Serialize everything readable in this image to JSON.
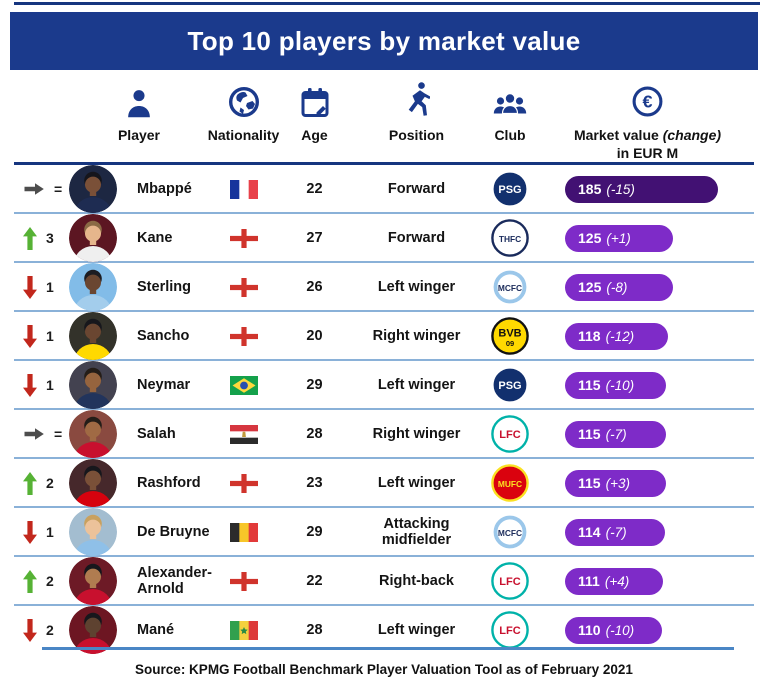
{
  "title": "Top 10 players by market value",
  "source": "Source: KPMG Football Benchmark Player Valuation Tool as of February 2021",
  "columns": [
    {
      "label": "Player",
      "icon": "player-icon"
    },
    {
      "label": "Nationality",
      "icon": "globe-icon"
    },
    {
      "label": "Age",
      "icon": "calendar-icon"
    },
    {
      "label": "Position",
      "icon": "running-player-icon"
    },
    {
      "label": "Club",
      "icon": "club-members-icon"
    },
    {
      "label": "Market value",
      "label_italic": "(change)",
      "label2": "in EUR M",
      "icon": "euro-coin-icon"
    }
  ],
  "colors": {
    "banner_navy": "#1b3a8c",
    "icon_navy": "#1b3a8c",
    "pill_purple": "#7e2bc8",
    "pill_dark_purple": "#421173",
    "separator_blue": "#8ab1d8",
    "bottom_rule_blue": "#4a86c5",
    "up_green": "#56b235",
    "down_red": "#c2271c",
    "same_gray": "#4d4d4d"
  },
  "chart_data": {
    "type": "table",
    "title": "Top 10 players by market value",
    "value_unit": "EUR M",
    "value_axis_note": "pill width proportional to market value",
    "rows": [
      {
        "rank": 1,
        "move": {
          "dir": "same",
          "label": "="
        },
        "name": "Mbappé",
        "nationality": "France",
        "flag": "france",
        "age": "22",
        "position": "Forward",
        "club": "psg",
        "value": 185,
        "value_text": "185",
        "change_text": "(-15)",
        "change": -15,
        "pill": "dark",
        "avatar": {
          "bg": "#1d2742",
          "shirt": "#1e2c52",
          "skin": "#7a5038",
          "hair": "#15151c"
        }
      },
      {
        "rank": 2,
        "move": {
          "dir": "up",
          "label": "3"
        },
        "name": "Kane",
        "nationality": "England",
        "flag": "england",
        "age": "27",
        "position": "Forward",
        "club": "spurs",
        "value": 125,
        "value_text": "125",
        "change_text": "(+1)",
        "change": 1,
        "pill": "normal",
        "avatar": {
          "bg": "#5c1622",
          "shirt": "#efefef",
          "skin": "#e6b68c",
          "hair": "#8a6a45"
        }
      },
      {
        "rank": 3,
        "move": {
          "dir": "down",
          "label": "1"
        },
        "name": "Sterling",
        "nationality": "England",
        "flag": "england",
        "age": "26",
        "position": "Left winger",
        "club": "mancity",
        "value": 125,
        "value_text": "125",
        "change_text": "(-8)",
        "change": -8,
        "pill": "normal",
        "avatar": {
          "bg": "#82bce8",
          "shirt": "#a3cdec",
          "skin": "#6a4631",
          "hair": "#1c1c22"
        }
      },
      {
        "rank": 4,
        "move": {
          "dir": "down",
          "label": "1"
        },
        "name": "Sancho",
        "nationality": "England",
        "flag": "england",
        "age": "20",
        "position": "Right winger",
        "club": "dortmund",
        "value": 118,
        "value_text": "118",
        "change_text": "(-12)",
        "change": -12,
        "pill": "normal",
        "avatar": {
          "bg": "#33322a",
          "shirt": "#ffd900",
          "skin": "#6a4631",
          "hair": "#17171c"
        }
      },
      {
        "rank": 5,
        "move": {
          "dir": "down",
          "label": "1"
        },
        "name": "Neymar",
        "nationality": "Brazil",
        "flag": "brazil",
        "age": "29",
        "position": "Left winger",
        "club": "psg",
        "value": 115,
        "value_text": "115",
        "change_text": "(-10)",
        "change": -10,
        "pill": "normal",
        "avatar": {
          "bg": "#434250",
          "shirt": "#22345c",
          "skin": "#96643e",
          "hair": "#241d18"
        }
      },
      {
        "rank": 6,
        "move": {
          "dir": "same",
          "label": "="
        },
        "name": "Salah",
        "nationality": "Egypt",
        "flag": "egypt",
        "age": "28",
        "position": "Right winger",
        "club": "liverpool",
        "value": 115,
        "value_text": "115",
        "change_text": "(-7)",
        "change": -7,
        "pill": "normal",
        "avatar": {
          "bg": "#8a4a40",
          "shirt": "#c8102e",
          "skin": "#a06a44",
          "hair": "#241d18"
        }
      },
      {
        "rank": 7,
        "move": {
          "dir": "up",
          "label": "2"
        },
        "name": "Rashford",
        "nationality": "England",
        "flag": "england",
        "age": "23",
        "position": "Left winger",
        "club": "manutd",
        "value": 115,
        "value_text": "115",
        "change_text": "(+3)",
        "change": 3,
        "pill": "normal",
        "avatar": {
          "bg": "#46282b",
          "shirt": "#d6020e",
          "skin": "#7a5038",
          "hair": "#17171c"
        }
      },
      {
        "rank": 8,
        "move": {
          "dir": "down",
          "label": "1"
        },
        "name": "De Bruyne",
        "nationality": "Belgium",
        "flag": "belgium",
        "age": "29",
        "position": "Attacking midfielder",
        "club": "mancity",
        "value": 114,
        "value_text": "114",
        "change_text": "(-7)",
        "change": -7,
        "pill": "normal",
        "avatar": {
          "bg": "#a3bdd0",
          "shirt": "#8fc0e8",
          "skin": "#ecc29a",
          "hair": "#c9a15f"
        }
      },
      {
        "rank": 9,
        "move": {
          "dir": "up",
          "label": "2"
        },
        "name": "Alexander-Arnold",
        "nationality": "England",
        "flag": "england",
        "age": "22",
        "position": "Right-back",
        "club": "liverpool",
        "value": 111,
        "value_text": "111",
        "change_text": "(+4)",
        "change": 4,
        "pill": "normal",
        "avatar": {
          "bg": "#6d1a26",
          "shirt": "#c8102e",
          "skin": "#b07c50",
          "hair": "#17171c"
        }
      },
      {
        "rank": 10,
        "move": {
          "dir": "down",
          "label": "2"
        },
        "name": "Mané",
        "nationality": "Senegal",
        "flag": "senegal",
        "age": "28",
        "position": "Left winger",
        "club": "liverpool",
        "value": 110,
        "value_text": "110",
        "change_text": "(-10)",
        "change": -10,
        "pill": "normal",
        "avatar": {
          "bg": "#6d1622",
          "shirt": "#c8102e",
          "skin": "#5e4230",
          "hair": "#17171c"
        }
      }
    ]
  },
  "flags": {
    "france": {
      "type": "v",
      "stripes": [
        "#16349c",
        "#ffffff",
        "#e8414a"
      ]
    },
    "england": {
      "type": "cross",
      "bg": "#ffffff",
      "cross": "#d0342c"
    },
    "brazil": {
      "type": "brazil",
      "bg": "#14a14b",
      "diamond": "#ffd83d",
      "circle": "#2a4fae"
    },
    "egypt": {
      "type": "h",
      "stripes": [
        "#d6363f",
        "#ffffff",
        "#2b2b2b"
      ],
      "emblem": "#c09a3e"
    },
    "belgium": {
      "type": "v",
      "stripes": [
        "#2b2b2b",
        "#f7c629",
        "#e23a3a"
      ]
    },
    "senegal": {
      "type": "v",
      "stripes": [
        "#31a04e",
        "#f4d03f",
        "#dd3a3a"
      ],
      "star": "#2a8a45"
    }
  },
  "badges": {
    "psg": {
      "club_name": "Paris Saint-Germain",
      "bg": "#12306e",
      "ring": "#ffffff",
      "inner": "",
      "label": "PSG",
      "labelColor": "#ffffff",
      "sub": ""
    },
    "spurs": {
      "club_name": "Tottenham Hotspur",
      "bg": "#ffffff",
      "ring": "#1a2b5c",
      "inner": "",
      "label": "THFC",
      "labelColor": "#1a2b5c",
      "sub": ""
    },
    "mancity": {
      "club_name": "Manchester City",
      "bg": "#9bc7ea",
      "ring": "#ffffff",
      "inner": "#ffffff",
      "label": "MCFC",
      "labelColor": "#1c2c5b",
      "sub": ""
    },
    "dortmund": {
      "club_name": "Borussia Dortmund",
      "bg": "#ffd900",
      "ring": "#111111",
      "inner": "",
      "label": "BVB",
      "labelColor": "#111111",
      "sub": "09"
    },
    "liverpool": {
      "club_name": "Liverpool",
      "bg": "#ffffff",
      "ring": "#00b2a9",
      "inner": "",
      "label": "LFC",
      "labelColor": "#c8102e",
      "sub": ""
    },
    "manutd": {
      "club_name": "Manchester United",
      "bg": "#da020e",
      "ring": "#fbe122",
      "inner": "",
      "label": "MUFC",
      "labelColor": "#fbe122",
      "sub": ""
    }
  }
}
